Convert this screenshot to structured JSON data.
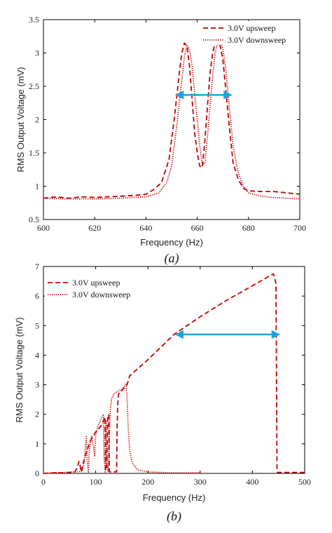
{
  "chart_data": [
    {
      "type": "line",
      "caption": "(a)",
      "xlabel": "Frequency (Hz)",
      "ylabel": "RMS Output Voltage (mV)",
      "xlim": [
        600,
        700
      ],
      "ylim": [
        0.5,
        3.5
      ],
      "xticks": [
        "600",
        "620",
        "640",
        "660",
        "680",
        "700"
      ],
      "yticks": [
        "0.5",
        "1",
        "1.5",
        "2",
        "2.5",
        "3",
        "3.5"
      ],
      "legend": {
        "placement": "top-right"
      },
      "series": [
        {
          "name": "3.0V upsweep",
          "style": "dashed",
          "color": "#c00000",
          "x": [
            600,
            605,
            610,
            615,
            620,
            625,
            630,
            635,
            640,
            643,
            646,
            649,
            651,
            653,
            654,
            655,
            656,
            657,
            658,
            659,
            660,
            661,
            662,
            663,
            664,
            665,
            666,
            667,
            668,
            669,
            670,
            671,
            672,
            673,
            674,
            676,
            678,
            680,
            685,
            690,
            695,
            700
          ],
          "y": [
            0.82,
            0.84,
            0.82,
            0.84,
            0.83,
            0.84,
            0.85,
            0.86,
            0.88,
            0.95,
            1.05,
            1.4,
            2.0,
            2.7,
            3.0,
            3.15,
            3.1,
            2.8,
            2.3,
            1.8,
            1.5,
            1.3,
            1.28,
            1.7,
            2.2,
            2.7,
            3.0,
            3.15,
            3.18,
            3.1,
            2.9,
            2.5,
            2.1,
            1.7,
            1.35,
            1.1,
            0.97,
            0.93,
            0.92,
            0.92,
            0.9,
            0.88
          ]
        },
        {
          "name": "3.0V downsweep",
          "style": "dotted",
          "color": "#c00000",
          "x": [
            600,
            610,
            620,
            630,
            640,
            645,
            648,
            650,
            652,
            654,
            655,
            656,
            657,
            658,
            659,
            660,
            661,
            662,
            663,
            664,
            665,
            666,
            667,
            668,
            669,
            670,
            671,
            672,
            673,
            674,
            676,
            678,
            680,
            685,
            690,
            695,
            700
          ],
          "y": [
            0.82,
            0.81,
            0.81,
            0.82,
            0.84,
            0.9,
            1.05,
            1.3,
            1.9,
            2.6,
            2.95,
            3.12,
            3.05,
            2.8,
            2.4,
            2.0,
            1.6,
            1.32,
            1.35,
            1.75,
            2.2,
            2.65,
            3.0,
            3.17,
            3.2,
            3.05,
            2.8,
            2.4,
            2.0,
            1.6,
            1.2,
            1.0,
            0.9,
            0.85,
            0.83,
            0.82,
            0.81
          ]
        }
      ],
      "annotations": [
        {
          "type": "double-arrow",
          "color": "#1fa3e0",
          "x_start": 652,
          "x_end": 673,
          "y": 2.37
        }
      ]
    },
    {
      "type": "line",
      "caption": "(b)",
      "xlabel": "Frequency (Hz)",
      "ylabel": "RMS Output Voltage (mV)",
      "xlim": [
        0,
        500
      ],
      "ylim": [
        0,
        7
      ],
      "xticks": [
        "0",
        "100",
        "200",
        "300",
        "400",
        "500"
      ],
      "yticks": [
        "0",
        "1",
        "2",
        "3",
        "4",
        "5",
        "6",
        "7"
      ],
      "legend": {
        "placement": "top-left"
      },
      "series": [
        {
          "name": "3.0V upsweep",
          "style": "dashed",
          "color": "#c00000",
          "x": [
            0,
            20,
            40,
            60,
            65,
            68,
            70,
            72,
            80,
            90,
            100,
            110,
            118,
            119,
            121,
            123,
            125,
            126,
            127,
            128,
            130,
            140,
            141,
            142,
            143,
            145,
            150,
            160,
            165,
            200,
            250,
            300,
            350,
            400,
            440,
            443,
            445,
            447,
            448,
            460,
            480,
            500
          ],
          "y": [
            0,
            0.02,
            0.02,
            0.05,
            0.2,
            0.4,
            0.3,
            0.05,
            0.6,
            1.1,
            1.4,
            1.6,
            1.9,
            0.1,
            0.2,
            1.85,
            2.0,
            0.1,
            0.05,
            0.05,
            0.05,
            0.05,
            1.5,
            2.2,
            2.6,
            2.75,
            2.8,
            3.0,
            3.3,
            3.85,
            4.7,
            5.3,
            5.85,
            6.35,
            6.75,
            6.6,
            6.4,
            0.1,
            0.03,
            0.03,
            0.03,
            0.03
          ]
        },
        {
          "name": "3.0V downsweep",
          "style": "dotted",
          "color": "#c00000",
          "x": [
            0,
            20,
            40,
            60,
            75,
            78,
            82,
            84,
            86,
            88,
            92,
            96,
            98,
            100,
            104,
            108,
            112,
            115,
            116,
            118,
            119,
            120,
            122,
            124,
            126,
            128,
            130,
            135,
            140,
            150,
            155,
            158,
            160,
            162,
            165,
            170,
            180,
            200,
            250,
            300
          ],
          "y": [
            0,
            0.02,
            0.03,
            0.05,
            0.08,
            0.4,
            1.25,
            0.4,
            0.05,
            0.8,
            1.25,
            0.9,
            0.6,
            1.3,
            1.6,
            1.75,
            1.9,
            2.0,
            0.5,
            0.05,
            1.4,
            1.8,
            0.3,
            0.05,
            1.2,
            2.1,
            2.5,
            2.7,
            2.75,
            2.85,
            2.95,
            3.05,
            2.6,
            1.6,
            0.8,
            0.35,
            0.12,
            0.05,
            0.02,
            0.02
          ]
        }
      ],
      "annotations": [
        {
          "type": "double-arrow",
          "color": "#1fa3e0",
          "x_start": 255,
          "x_end": 450,
          "y": 4.7
        }
      ]
    }
  ]
}
